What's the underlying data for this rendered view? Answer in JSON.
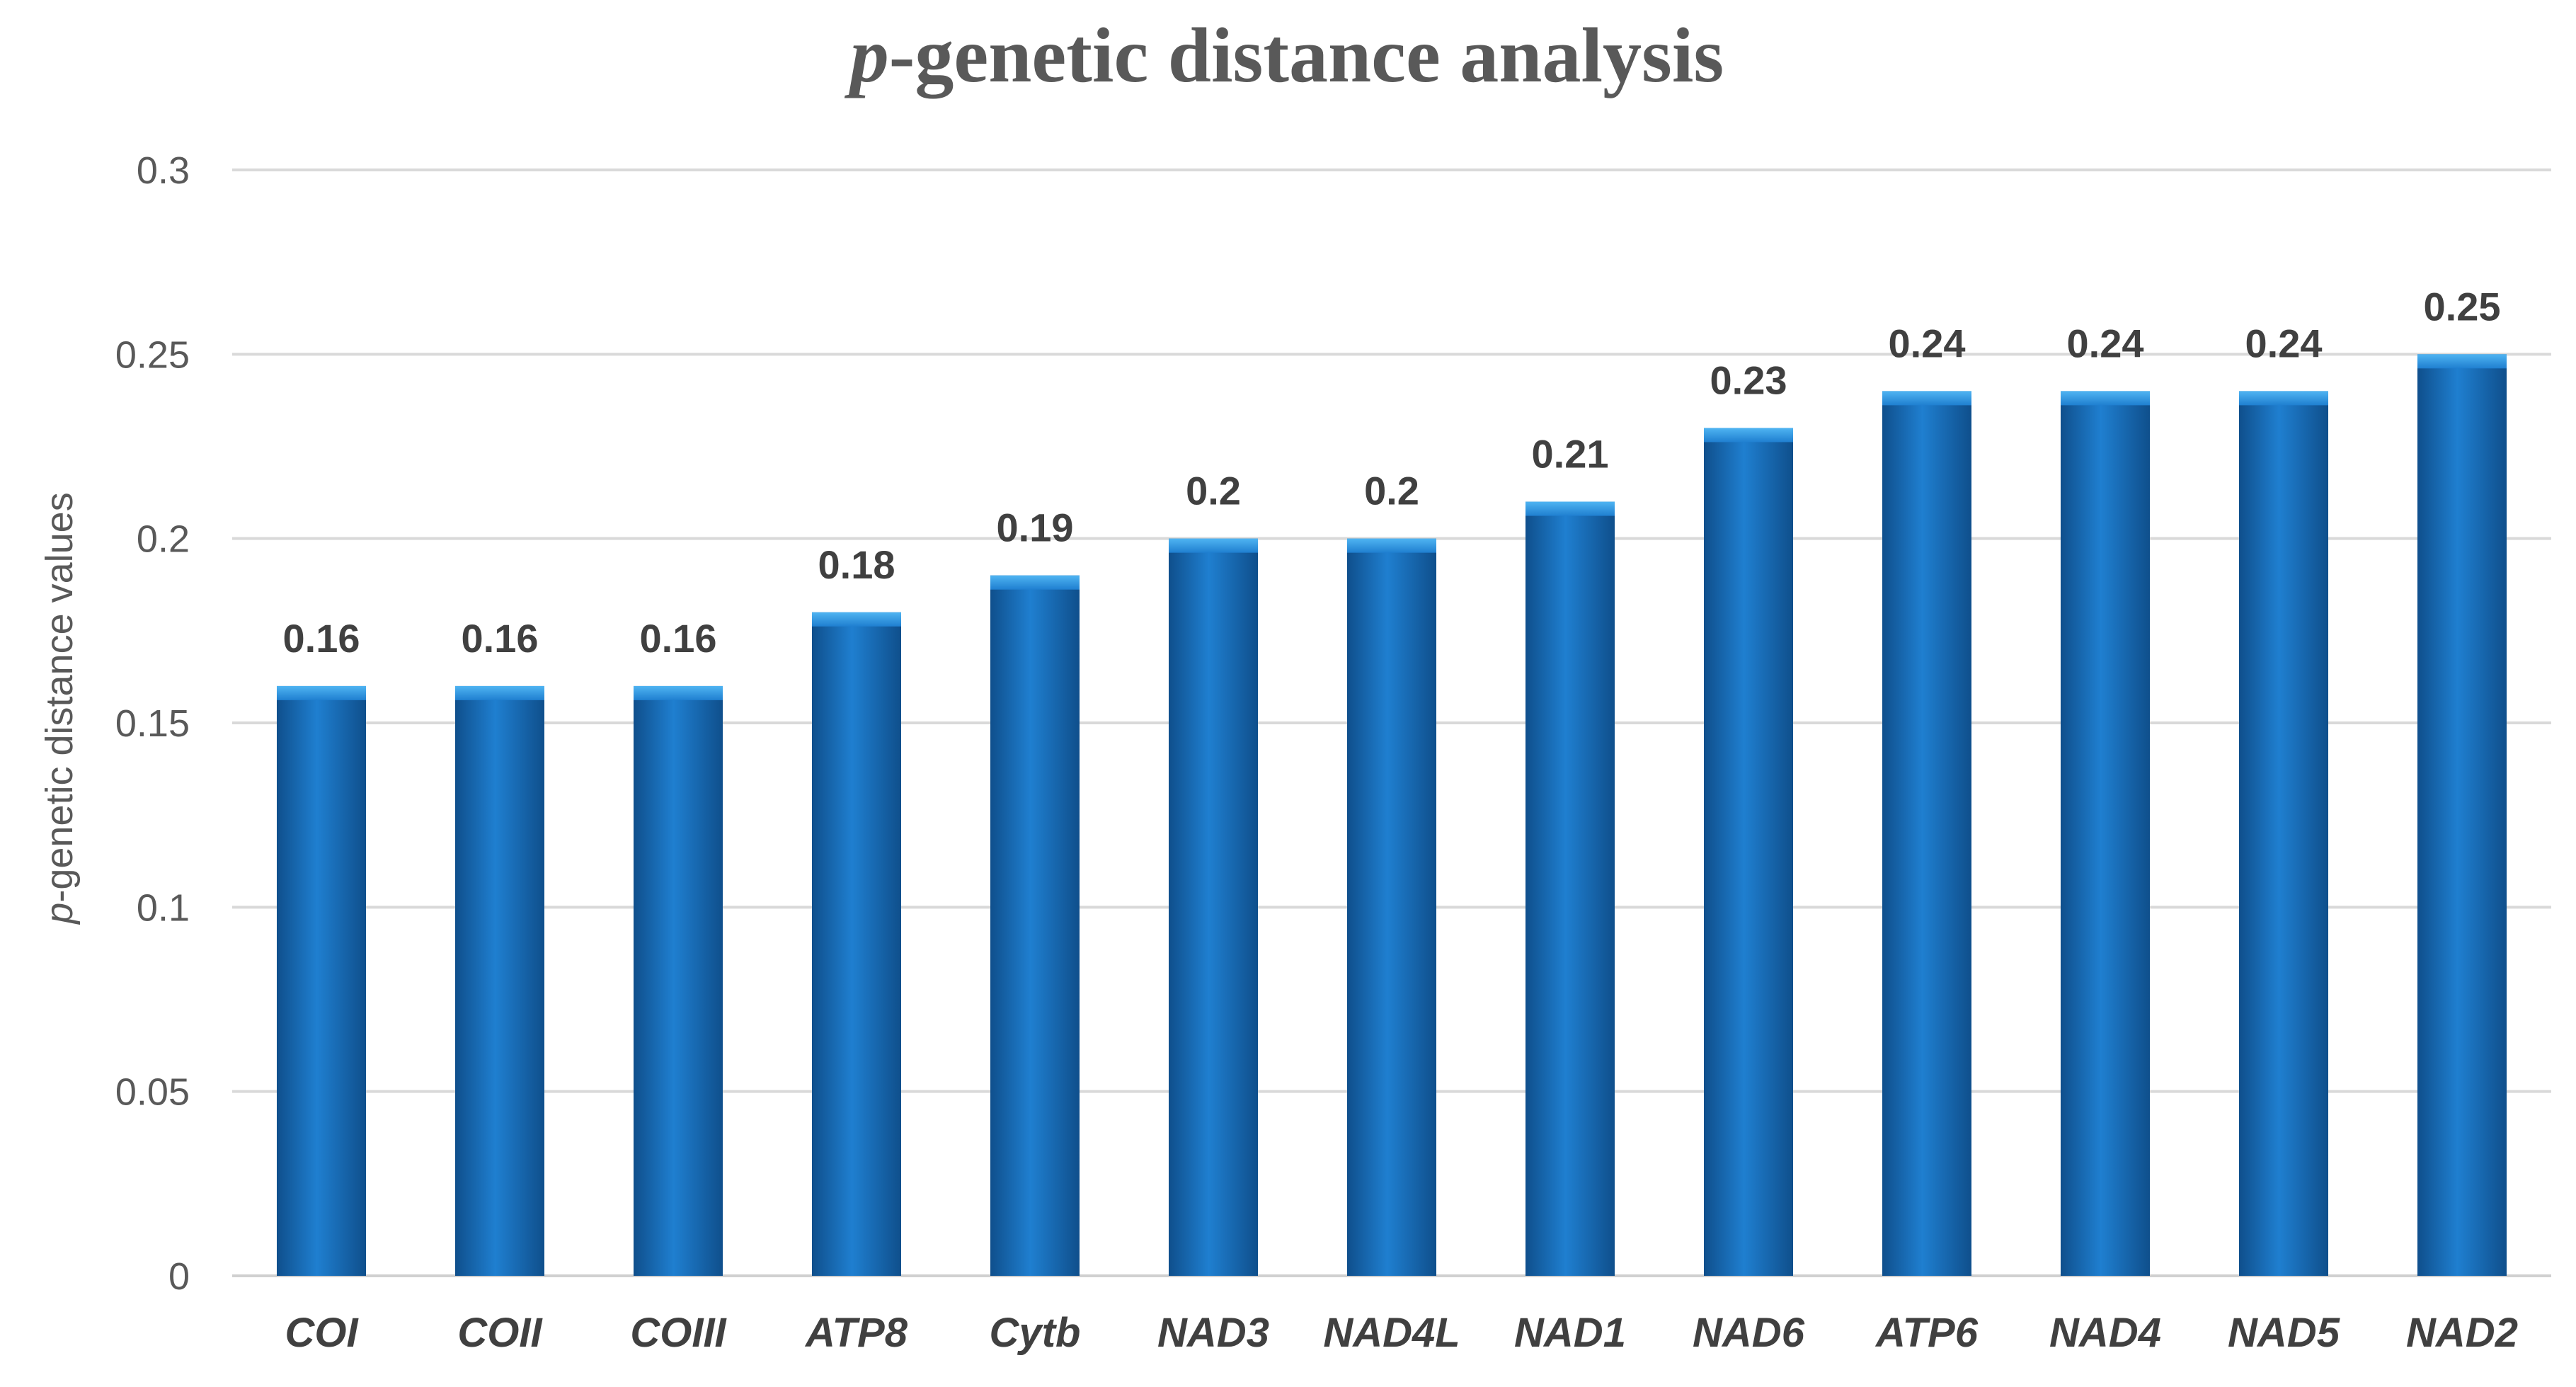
{
  "chart_data": {
    "type": "bar",
    "title_prefix": "p",
    "title_rest": "-genetic distance analysis",
    "ylabel_prefix": "p",
    "ylabel_rest": "-genetic distance values",
    "xlabel": "",
    "categories": [
      "COI",
      "COII",
      "COIII",
      "ATP8",
      "Cytb",
      "NAD3",
      "NAD4L",
      "NAD1",
      "NAD6",
      "ATP6",
      "NAD4",
      "NAD5",
      "NAD2"
    ],
    "values": [
      0.16,
      0.16,
      0.16,
      0.18,
      0.19,
      0.2,
      0.2,
      0.21,
      0.23,
      0.24,
      0.24,
      0.24,
      0.25
    ],
    "data_labels": [
      "0.16",
      "0.16",
      "0.16",
      "0.18",
      "0.19",
      "0.2",
      "0.2",
      "0.21",
      "0.23",
      "0.24",
      "0.24",
      "0.24",
      "0.25"
    ],
    "ylim": [
      0,
      0.3
    ],
    "yticks": [
      0,
      0.05,
      0.1,
      0.15,
      0.2,
      0.25,
      0.3
    ],
    "ytick_labels": [
      "0",
      "0.05",
      "0.1",
      "0.15",
      "0.2",
      "0.25",
      "0.3"
    ],
    "grid": true,
    "legend": "none",
    "bar_color": "#1f7fd0",
    "bar_color_dark": "#0f4f8c",
    "bar_color_light": "#4fb4f2"
  }
}
